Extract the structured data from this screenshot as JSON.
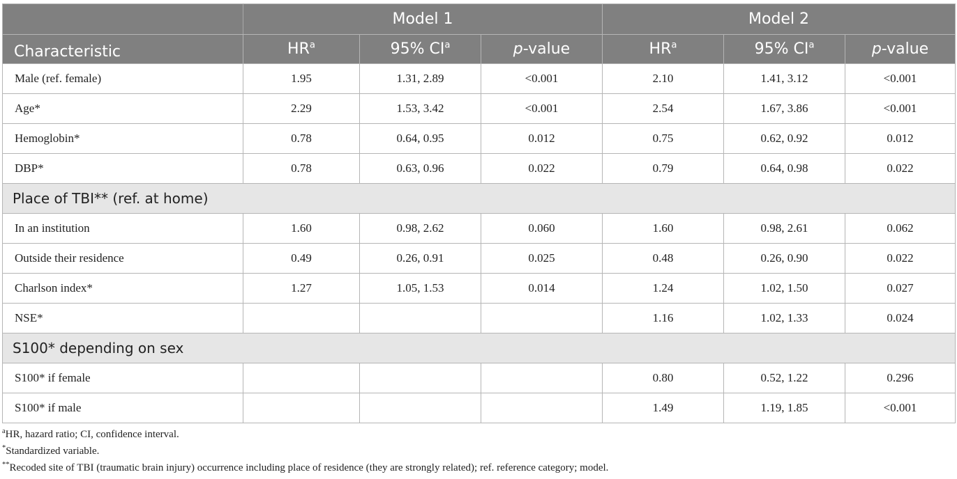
{
  "header": {
    "model1": "Model 1",
    "model2": "Model 2",
    "characteristic": "Characteristic",
    "hr": "HR",
    "ci": "95% CI",
    "sup_a": "a",
    "p_italic": "p",
    "p_rest": "-value"
  },
  "rows": [
    {
      "label": "Male (ref. female)",
      "m1": [
        "1.95",
        "1.31, 2.89",
        "<0.001"
      ],
      "m2": [
        "2.10",
        "1.41, 3.12",
        "<0.001"
      ]
    },
    {
      "label": "Age*",
      "m1": [
        "2.29",
        "1.53, 3.42",
        "<0.001"
      ],
      "m2": [
        "2.54",
        "1.67, 3.86",
        "<0.001"
      ]
    },
    {
      "label": "Hemoglobin*",
      "m1": [
        "0.78",
        "0.64, 0.95",
        "0.012"
      ],
      "m2": [
        "0.75",
        "0.62, 0.92",
        "0.012"
      ]
    },
    {
      "label": "DBP*",
      "m1": [
        "0.78",
        "0.63, 0.96",
        "0.022"
      ],
      "m2": [
        "0.79",
        "0.64, 0.98",
        "0.022"
      ]
    },
    {
      "section": "Place of TBI** (ref. at home)"
    },
    {
      "label": "In an institution",
      "m1": [
        "1.60",
        "0.98, 2.62",
        "0.060"
      ],
      "m2": [
        "1.60",
        "0.98, 2.61",
        "0.062"
      ]
    },
    {
      "label": "Outside their residence",
      "m1": [
        "0.49",
        "0.26, 0.91",
        "0.025"
      ],
      "m2": [
        "0.48",
        "0.26, 0.90",
        "0.022"
      ]
    },
    {
      "label": "Charlson index*",
      "m1": [
        "1.27",
        "1.05, 1.53",
        "0.014"
      ],
      "m2": [
        "1.24",
        "1.02, 1.50",
        "0.027"
      ]
    },
    {
      "label": "NSE*",
      "m1": [
        "",
        "",
        ""
      ],
      "m2": [
        "1.16",
        "1.02, 1.33",
        "0.024"
      ]
    },
    {
      "section": "S100* depending on sex"
    },
    {
      "label": "S100* if female",
      "m1": [
        "",
        "",
        ""
      ],
      "m2": [
        "0.80",
        "0.52, 1.22",
        "0.296"
      ]
    },
    {
      "label": "S100* if male",
      "m1": [
        "",
        "",
        ""
      ],
      "m2": [
        "1.49",
        "1.19, 1.85",
        "<0.001"
      ]
    }
  ],
  "footnotes": [
    {
      "mark": "a",
      "text": "HR, hazard ratio; CI, confidence interval."
    },
    {
      "mark": "*",
      "text": "Standardized variable."
    },
    {
      "mark": "**",
      "text": "Recoded site of TBI (traumatic brain injury) occurrence including place of residence (they are strongly related); ref. reference category; model."
    }
  ],
  "colors": {
    "header_bg": "#808080",
    "section_bg": "#e6e6e6",
    "border": "#b5b5b5"
  }
}
